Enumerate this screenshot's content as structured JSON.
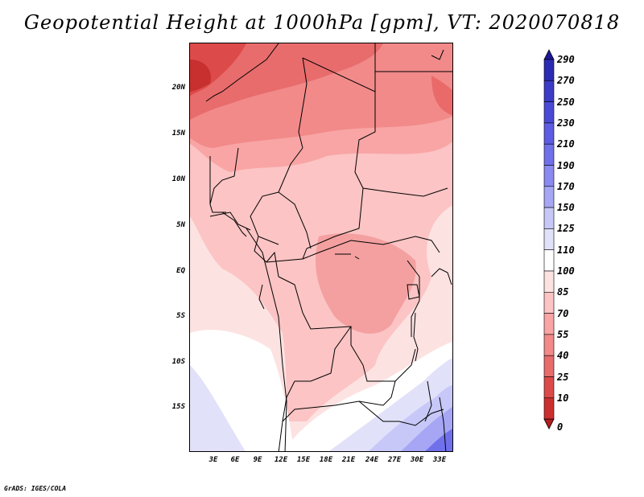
{
  "title": "Geopotential Height at 1000hPa [gpm], VT: 2020070818",
  "credit": "GrADS: IGES/COLA",
  "map": {
    "variable": "Geopotential Height",
    "level": "1000hPa",
    "units": "gpm",
    "valid_time": "2020070818",
    "lat_labels": [
      "20N",
      "15N",
      "10N",
      "5N",
      "EQ",
      "5S",
      "10S",
      "15S"
    ],
    "lon_labels": [
      "3E",
      "6E",
      "9E",
      "12E",
      "15E",
      "18E",
      "21E",
      "24E",
      "27E",
      "30E",
      "33E"
    ]
  },
  "colorbar": {
    "labels": [
      "290",
      "270",
      "250",
      "230",
      "210",
      "190",
      "170",
      "150",
      "125",
      "110",
      "100",
      "85",
      "70",
      "55",
      "40",
      "25",
      "10",
      "0"
    ],
    "colors": [
      "#1f1799",
      "#2c2bb3",
      "#3c3cc6",
      "#4b4ad6",
      "#5d5ce2",
      "#7170eb",
      "#8a8af1",
      "#a6a6f5",
      "#c8c8f8",
      "#e1e1fa",
      "#ffffff",
      "#fde2e2",
      "#fcc4c4",
      "#f9a5a5",
      "#f28a8a",
      "#e86c6c",
      "#dd4a4a",
      "#cc2f2f",
      "#b51d1d"
    ]
  }
}
